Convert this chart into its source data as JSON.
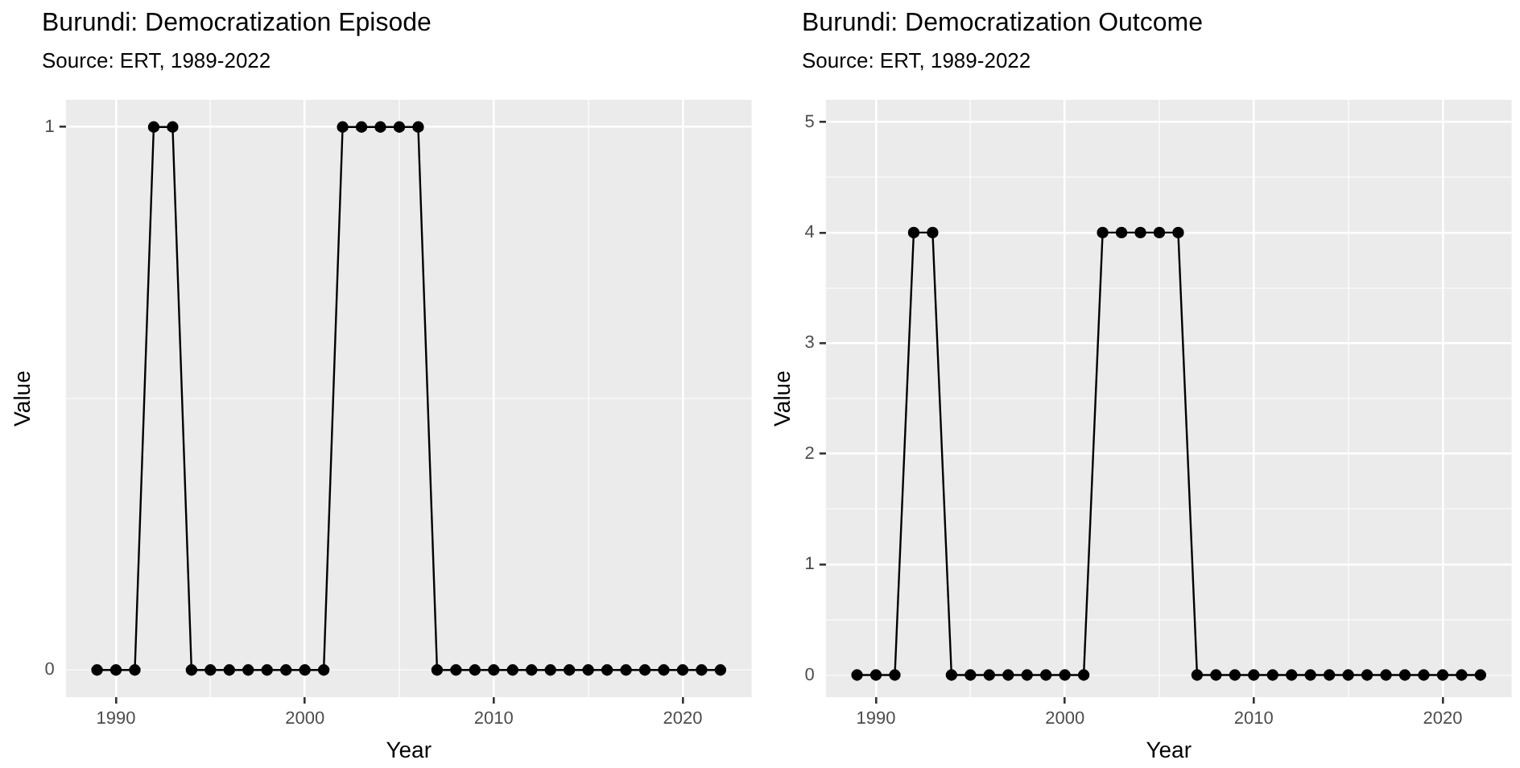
{
  "chart_data": [
    {
      "type": "line",
      "title": "Burundi: Democratization Episode",
      "subtitle": "Source: ERT, 1989-2022",
      "xlabel": "Year",
      "ylabel": "Value",
      "x": [
        1989,
        1990,
        1991,
        1992,
        1993,
        1994,
        1995,
        1996,
        1997,
        1998,
        1999,
        2000,
        2001,
        2002,
        2003,
        2004,
        2005,
        2006,
        2007,
        2008,
        2009,
        2010,
        2011,
        2012,
        2013,
        2014,
        2015,
        2016,
        2017,
        2018,
        2019,
        2020,
        2021,
        2022
      ],
      "series": [
        {
          "color": "#000000",
          "values": [
            0,
            0,
            0,
            1,
            1,
            0,
            0,
            0,
            0,
            0,
            0,
            0,
            0,
            1,
            1,
            1,
            1,
            1,
            0,
            0,
            0,
            0,
            0,
            0,
            0,
            0,
            0,
            0,
            0,
            0,
            0,
            0,
            0,
            0
          ]
        }
      ],
      "xlim": [
        1987.35,
        2023.65
      ],
      "xticks": [
        1990,
        {
          "value": 1995,
          "label": null
        },
        2000,
        {
          "value": 2005,
          "label": null
        },
        2010,
        {
          "value": 2015,
          "label": null
        },
        2020
      ],
      "ylim": [
        -0.05,
        1.05
      ],
      "yticks": [
        0,
        {
          "value": 0.5,
          "label": null
        },
        1
      ],
      "grid": true,
      "legend": false,
      "marker": "circle",
      "line_style": "solid"
    },
    {
      "type": "line",
      "title": "Burundi: Democratization Outcome",
      "subtitle": "Source: ERT, 1989-2022",
      "xlabel": "Year",
      "ylabel": "Value",
      "x": [
        1989,
        1990,
        1991,
        1992,
        1993,
        1994,
        1995,
        1996,
        1997,
        1998,
        1999,
        2000,
        2001,
        2002,
        2003,
        2004,
        2005,
        2006,
        2007,
        2008,
        2009,
        2010,
        2011,
        2012,
        2013,
        2014,
        2015,
        2016,
        2017,
        2018,
        2019,
        2020,
        2021,
        2022
      ],
      "series": [
        {
          "color": "#000000",
          "values": [
            0,
            0,
            0,
            4,
            4,
            0,
            0,
            0,
            0,
            0,
            0,
            0,
            0,
            4,
            4,
            4,
            4,
            4,
            0,
            0,
            0,
            0,
            0,
            0,
            0,
            0,
            0,
            0,
            0,
            0,
            0,
            0,
            0,
            0
          ]
        }
      ],
      "xlim": [
        1987.35,
        2023.65
      ],
      "xticks": [
        1990,
        {
          "value": 1995,
          "label": null
        },
        2000,
        {
          "value": 2005,
          "label": null
        },
        2010,
        {
          "value": 2015,
          "label": null
        },
        2020
      ],
      "ylim": [
        -0.2,
        5.2
      ],
      "yticks": [
        0,
        {
          "value": 0.5,
          "label": null
        },
        1,
        {
          "value": 1.5,
          "label": null
        },
        2,
        {
          "value": 2.5,
          "label": null
        },
        3,
        {
          "value": 3.5,
          "label": null
        },
        4,
        {
          "value": 4.5,
          "label": null
        },
        5
      ],
      "grid": true,
      "legend": false,
      "marker": "circle",
      "line_style": "solid"
    }
  ]
}
